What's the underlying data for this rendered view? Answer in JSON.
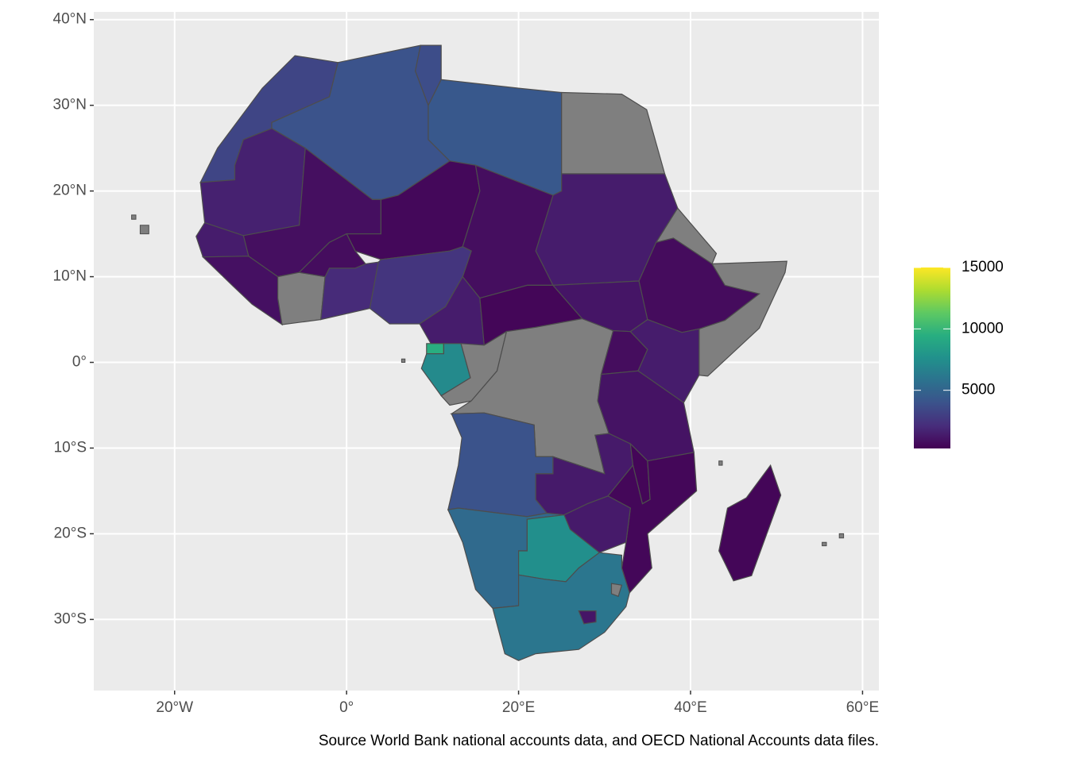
{
  "chart_data": {
    "type": "choropleth",
    "caption": "Source World Bank national accounts data, and OECD National Accounts data files.",
    "xlim": [
      -29.4,
      61.9
    ],
    "ylim": [
      -38.3,
      40.9
    ],
    "xticks": [
      {
        "value": -20,
        "label": "20°W"
      },
      {
        "value": 0,
        "label": "0°"
      },
      {
        "value": 20,
        "label": "20°E"
      },
      {
        "value": 40,
        "label": "40°E"
      },
      {
        "value": 60,
        "label": "60°E"
      }
    ],
    "yticks": [
      {
        "value": 40,
        "label": "40°N"
      },
      {
        "value": 30,
        "label": "30°N"
      },
      {
        "value": 20,
        "label": "20°N"
      },
      {
        "value": 10,
        "label": "10°N"
      },
      {
        "value": 0,
        "label": "0°"
      },
      {
        "value": -10,
        "label": "10°S"
      },
      {
        "value": -20,
        "label": "20°S"
      },
      {
        "value": -30,
        "label": "30°S"
      }
    ],
    "grid": true,
    "colormap": "viridis",
    "na_color": "#7f7f7f",
    "colorbar_lim": [
      260,
      15000
    ],
    "colorbar_ticks": [
      5000,
      10000,
      15000
    ],
    "values": [
      3300,
      4000,
      3700,
      4300,
      null,
      1400,
      1600,
      850,
      550,
      800,
      1400,
      900,
      null,
      2000,
      750,
      2500,
      1400,
      450,
      9500,
      7200,
      null,
      null,
      1100,
      null,
      700,
      null,
      750,
      1400,
      1000,
      4000,
      1300,
      450,
      500,
      1300,
      5300,
      7500,
      6000,
      1100,
      null,
      450
    ]
  }
}
